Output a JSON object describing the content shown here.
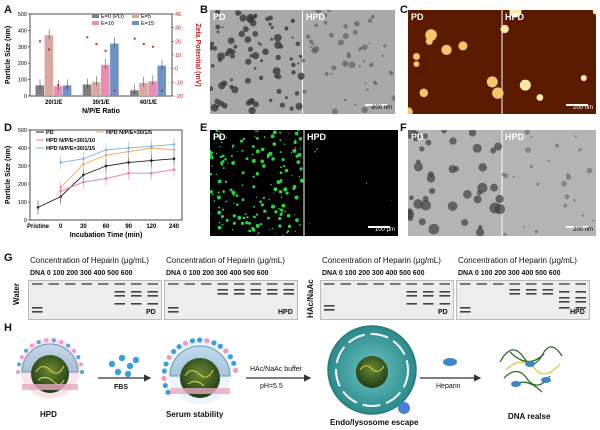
{
  "panels": {
    "A": "A",
    "B": "B",
    "C": "C",
    "D": "D",
    "E": "E",
    "F": "F",
    "G": "G",
    "H": "H"
  },
  "chart_data": [
    {
      "type": "bar",
      "panel": "A",
      "categories": [
        "20/1/E",
        "30/1/E",
        "40/1/E"
      ],
      "series": [
        {
          "name": "E=0 (PD)",
          "color": "#7f7f7f",
          "values": [
            65,
            70,
            35
          ]
        },
        {
          "name": "E=5",
          "color": "#d8a9a0",
          "values": [
            370,
            85,
            80
          ]
        },
        {
          "name": "E=10",
          "color": "#e58fb5",
          "values": [
            60,
            190,
            90
          ]
        },
        {
          "name": "E=15",
          "color": "#6f93c6",
          "values": [
            65,
            320,
            185
          ]
        }
      ],
      "zeta_points": [
        {
          "category": "20/1/E",
          "values": [
            20,
            14,
            -12,
            -14
          ]
        },
        {
          "category": "30/1/E",
          "values": [
            23,
            18,
            13,
            -16
          ]
        },
        {
          "category": "40/1/E",
          "values": [
            22,
            18,
            16,
            -16
          ]
        }
      ],
      "xlabel": "N/P/E Ratio",
      "ylabel": "Particle Size (nm)",
      "y2label": "Zeta Potential (mV)",
      "ylim": [
        0,
        500
      ],
      "y2lim": [
        -20,
        40
      ],
      "yticks": [
        0,
        100,
        200,
        300,
        400,
        500
      ],
      "y2ticks": [
        -20,
        -10,
        0,
        10,
        20,
        30,
        40
      ],
      "legend": "top-right"
    },
    {
      "type": "line",
      "panel": "D",
      "categories": [
        "Pristine",
        "0",
        "30",
        "60",
        "90",
        "120",
        "240"
      ],
      "series": [
        {
          "name": "PD",
          "color": "#222222",
          "values": [
            70,
            130,
            250,
            300,
            320,
            330,
            340
          ]
        },
        {
          "name": "HPD N/P/E=30/1/5",
          "color": "#f2a65a",
          "values": [
            null,
            180,
            310,
            360,
            380,
            400,
            390
          ]
        },
        {
          "name": "HPD N/P/E=30/1/10",
          "color": "#e67fa3",
          "values": [
            null,
            160,
            210,
            230,
            260,
            260,
            280
          ]
        },
        {
          "name": "HPD N/P/E=30/1/15",
          "color": "#7fb3e6",
          "values": [
            null,
            320,
            340,
            390,
            400,
            410,
            420
          ]
        }
      ],
      "xlabel": "Incubation Time (min)",
      "ylabel": "Particle Size (nm)",
      "ylim": [
        0,
        500
      ],
      "yticks": [
        0,
        100,
        200,
        300,
        400,
        500
      ],
      "legend": "top-left"
    }
  ],
  "micro": {
    "B": {
      "left": "PD",
      "right": "HPD",
      "scale": "200 nm"
    },
    "C": {
      "left": "PD",
      "right": "HPD",
      "scale": "200 nm"
    },
    "E": {
      "left": "PD",
      "right": "HPD",
      "scale": "100 μm"
    },
    "F": {
      "left": "PD",
      "right": "HPD",
      "scale": "200 nm"
    }
  },
  "gels": {
    "title": "Concentration of Heparin (μg/mL)",
    "lanes": "DNA  0    100 200 300 400 500 600",
    "water": "Water",
    "hac": "HAc/NaAc",
    "tags": [
      "PD",
      "HPD",
      "PD",
      "HPD"
    ]
  },
  "scheme": {
    "hpd": "HPD",
    "fbs": "FBS",
    "serum": "Serum stability",
    "buffer": "HAc/NaAc buffer",
    "ph": "pH=5.5",
    "endo": "Endo/lysosome escape",
    "heparin": "Heparin",
    "release": "DNA realse"
  }
}
